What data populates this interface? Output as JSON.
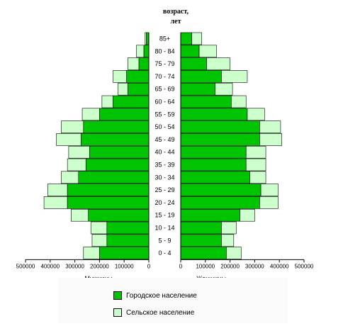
{
  "chart_data": {
    "type": "bar",
    "subtype": "population-pyramid",
    "title_lines": [
      "возраст,",
      "лет"
    ],
    "categories": [
      "85+",
      "80 - 84",
      "75 - 79",
      "70 - 74",
      "65 - 69",
      "60 - 64",
      "55 - 59",
      "50 - 54",
      "45 - 49",
      "40 - 44",
      "35 - 39",
      "30 - 34",
      "25 - 29",
      "20 - 24",
      "15 - 19",
      "10 - 14",
      "5 - 9",
      "0 - 4"
    ],
    "x_ticks": [
      "500000",
      "400000",
      "300000",
      "200000",
      "100000",
      "0"
    ],
    "x_ticks_right": [
      "0",
      "100000",
      "200000",
      "300000",
      "400000",
      "500000"
    ],
    "xlim": [
      0,
      500000
    ],
    "left_label": "Мужчины",
    "right_label": "Женщины",
    "series": [
      {
        "name": "Городское население",
        "color": "#00c400",
        "men": [
          10000,
          20000,
          40000,
          90000,
          85000,
          145000,
          200000,
          265000,
          275000,
          240000,
          255000,
          285000,
          330000,
          330000,
          245000,
          170000,
          170000,
          200000
        ],
        "women": [
          45000,
          75000,
          105000,
          165000,
          140000,
          205000,
          270000,
          320000,
          320000,
          265000,
          265000,
          280000,
          325000,
          320000,
          240000,
          165000,
          165000,
          185000
        ]
      },
      {
        "name": "Сельское население",
        "color": "#ccffcc",
        "men": [
          5000,
          30000,
          45000,
          55000,
          40000,
          45000,
          70000,
          90000,
          100000,
          85000,
          75000,
          70000,
          80000,
          95000,
          70000,
          65000,
          60000,
          65000
        ],
        "women": [
          40000,
          70000,
          95000,
          105000,
          70000,
          60000,
          70000,
          85000,
          90000,
          80000,
          80000,
          65000,
          70000,
          75000,
          60000,
          60000,
          50000,
          60000
        ]
      }
    ],
    "legend_position": "bottom-center"
  }
}
